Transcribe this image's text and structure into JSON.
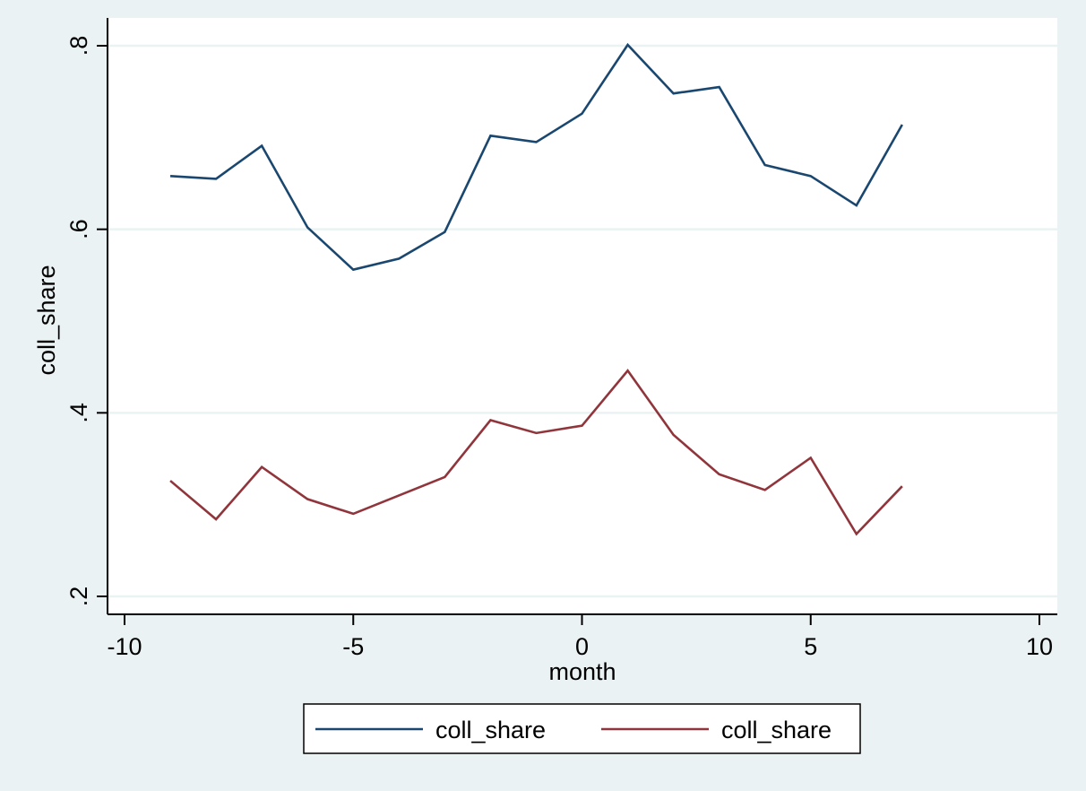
{
  "chart_data": {
    "type": "line",
    "xlabel": "month",
    "ylabel": "coll_share",
    "xlim": [
      -10,
      10
    ],
    "ylim": [
      0.2,
      0.8
    ],
    "xticks": [
      -10,
      -5,
      0,
      5,
      10
    ],
    "xtick_labels": [
      "-10",
      "-5",
      "0",
      "5",
      "10"
    ],
    "yticks": [
      0.2,
      0.4,
      0.6,
      0.8
    ],
    "ytick_labels": [
      ".2",
      ".4",
      ".6",
      ".8"
    ],
    "grid": true,
    "legend_position": "bottom",
    "x": [
      -9,
      -8,
      -7,
      -6,
      -5,
      -4,
      -3,
      -2,
      -1,
      0,
      1,
      2,
      3,
      4,
      5,
      6,
      7
    ],
    "series": [
      {
        "name": "coll_share",
        "color": "#1a476f",
        "values": [
          0.658,
          0.655,
          0.691,
          0.602,
          0.556,
          0.568,
          0.597,
          0.702,
          0.695,
          0.726,
          0.801,
          0.748,
          0.755,
          0.67,
          0.658,
          0.626,
          0.714
        ]
      },
      {
        "name": "coll_share",
        "color": "#90353b",
        "values": [
          0.326,
          0.284,
          0.341,
          0.306,
          0.29,
          0.31,
          0.33,
          0.392,
          0.378,
          0.386,
          0.446,
          0.376,
          0.333,
          0.316,
          0.351,
          0.268,
          0.32
        ]
      }
    ]
  }
}
